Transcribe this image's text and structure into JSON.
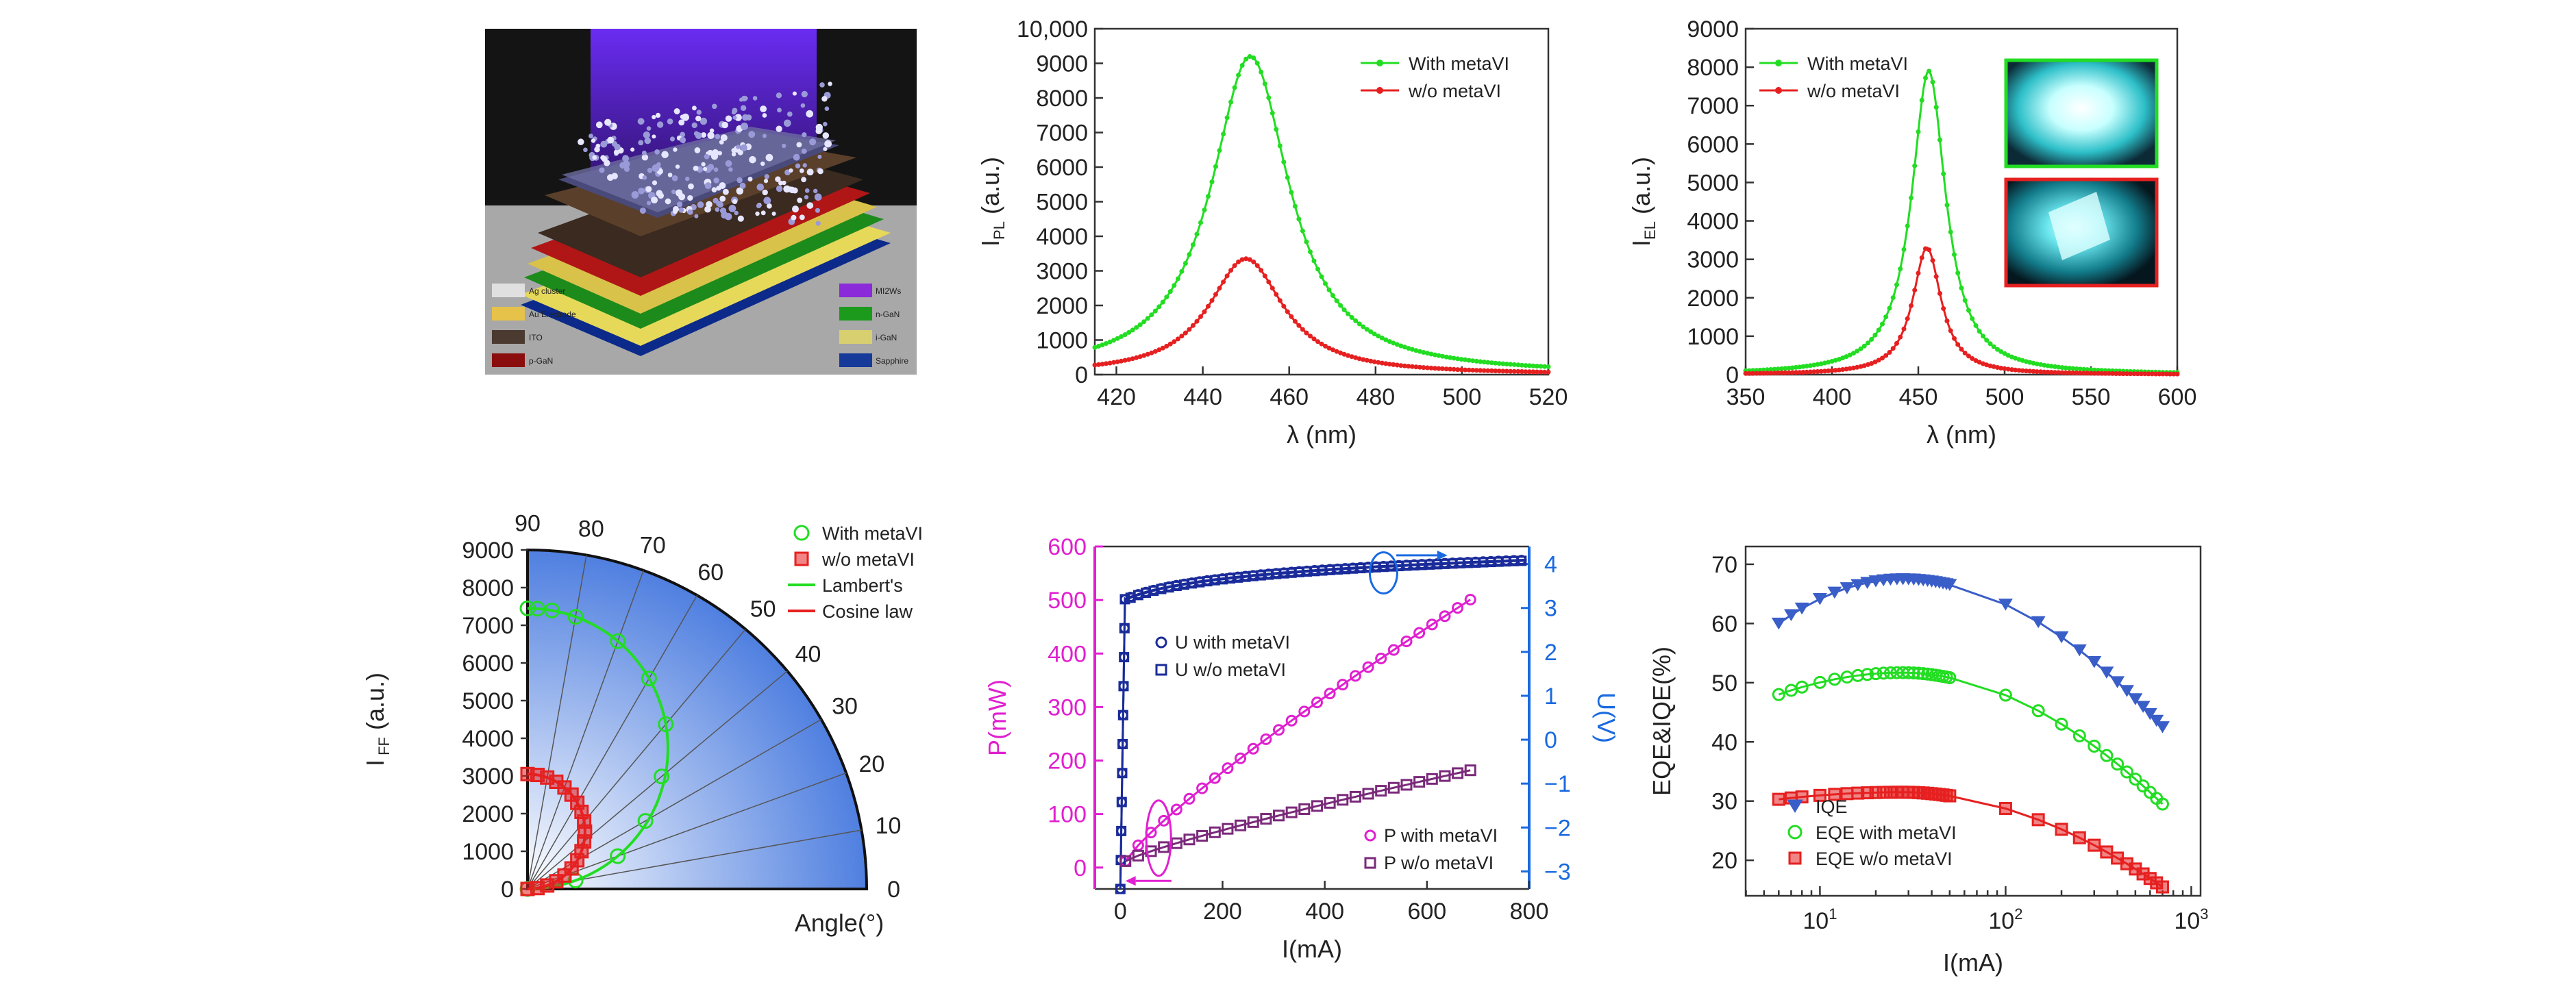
{
  "colors": {
    "green": "#22dd22",
    "red": "#e62020",
    "magenta": "#e020d0",
    "navy": "#1a2b9a",
    "purple": "#7a2a7a",
    "blue_axis": "#1a6ae0",
    "iqe": "#3a5ec8"
  },
  "photo": {
    "legend_left": [
      "Ag cluster",
      "Au Electrode",
      "ITO",
      "p-GaN"
    ],
    "legend_right": [
      "MI2Ws",
      "n-GaN",
      "i-GaN",
      "Sapphire"
    ]
  },
  "chart_data": [
    {
      "id": "pl",
      "type": "line",
      "xlabel": "λ (nm)",
      "ylabel_main": "I",
      "ylabel_sub": "PL",
      "ylabel_tail": " (a.u.)",
      "xlim": [
        415,
        520
      ],
      "ylim": [
        0,
        10000
      ],
      "xticks": [
        420,
        440,
        460,
        480,
        500,
        520
      ],
      "yticks": [
        0,
        1000,
        2000,
        3000,
        4000,
        5000,
        6000,
        7000,
        8000,
        9000,
        10000
      ],
      "ytick_labels": [
        "0",
        "1000",
        "2000",
        "3000",
        "4000",
        "5000",
        "6000",
        "7000",
        "8000",
        "9000",
        "10,000"
      ],
      "series": [
        {
          "name": "With metaVI",
          "color": "green",
          "peak_x": 451,
          "peak_y": 9200,
          "width": 11
        },
        {
          "name": "w/o metaVI",
          "color": "red",
          "peak_x": 450,
          "peak_y": 3350,
          "width": 10.5
        }
      ]
    },
    {
      "id": "el",
      "type": "line",
      "xlabel": "λ (nm)",
      "ylabel_main": "I",
      "ylabel_sub": "EL",
      "ylabel_tail": " (a.u.)",
      "xlim": [
        350,
        600
      ],
      "ylim": [
        0,
        9000
      ],
      "xticks": [
        350,
        400,
        450,
        500,
        550,
        600
      ],
      "yticks": [
        0,
        1000,
        2000,
        3000,
        4000,
        5000,
        6000,
        7000,
        8000,
        9000
      ],
      "ytick_labels": [
        "0",
        "1000",
        "2000",
        "3000",
        "4000",
        "5000",
        "6000",
        "7000",
        "8000",
        "9000"
      ],
      "series": [
        {
          "name": "With metaVI",
          "color": "green",
          "peak_x": 456,
          "peak_y": 7900,
          "width": 12
        },
        {
          "name": "w/o metaVI",
          "color": "red",
          "peak_x": 455,
          "peak_y": 3300,
          "width": 10
        }
      ]
    },
    {
      "id": "polar",
      "type": "scatter",
      "xlabel": "Angle(°)",
      "ylabel_main": "I",
      "ylabel_sub": " FF",
      "ylabel_tail": " (a.u.)",
      "rlim": [
        0,
        9000
      ],
      "yticks": [
        0,
        1000,
        2000,
        3000,
        4000,
        5000,
        6000,
        7000,
        8000,
        9000
      ],
      "angle_labels": [
        "0",
        "10",
        "20",
        "30",
        "40",
        "50",
        "60",
        "70",
        "80",
        "90"
      ],
      "legend": [
        "With metaVI",
        "w/o metaVI",
        "Lambert's",
        "Cosine law"
      ],
      "with_amplitude": 7450,
      "wo_amplitude": 3050,
      "angles_with": [
        0,
        10,
        20,
        30,
        40,
        50,
        60,
        70,
        80,
        85,
        88,
        90
      ],
      "angles_wo": [
        0,
        5,
        10,
        15,
        20,
        25,
        30,
        35,
        40,
        45,
        50,
        55,
        60,
        65,
        70,
        75,
        80,
        85,
        90
      ]
    },
    {
      "id": "pui",
      "type": "line",
      "xlabel": "I(mA)",
      "ylabel_left": "P(mW)",
      "ylabel_right": "U(V)",
      "xlim": [
        -50,
        800
      ],
      "ylim_left": [
        -40,
        600
      ],
      "ylim_right": [
        -3.4,
        4.4
      ],
      "xticks": [
        0,
        200,
        400,
        600,
        800
      ],
      "yticks_left": [
        0,
        100,
        200,
        300,
        400,
        500,
        600
      ],
      "yticks_right": [
        -3,
        -2,
        -1,
        0,
        1,
        2,
        3,
        4
      ],
      "ytick_right_labels": [
        "−3",
        "−2",
        "−1",
        "0",
        "1",
        "2",
        "3",
        "4"
      ],
      "legend_top": [
        "U with metaVI",
        "U w/o metaVI"
      ],
      "legend_bottom": [
        "P with metaVI",
        "P w/o metaVI"
      ],
      "p_with_end": 510,
      "p_wo_end": 185,
      "p_end_x": 700,
      "u_start": 3.15,
      "u_end": 4.1
    },
    {
      "id": "eqe",
      "type": "line",
      "xlabel": "I(mA)",
      "ylabel": "EQE&IQE(%)",
      "xlog_decades": [
        1,
        2,
        3
      ],
      "xlim_log": [
        0.6,
        3.05
      ],
      "ylim": [
        14,
        73
      ],
      "yticks": [
        20,
        30,
        40,
        50,
        60,
        70
      ],
      "legend": [
        "IQE",
        "EQE with metaVI",
        "EQE w/o metaVI"
      ],
      "x_points": [
        6,
        7,
        8,
        10,
        12,
        14,
        16,
        18,
        20,
        22,
        24,
        26,
        28,
        30,
        32,
        34,
        36,
        38,
        40,
        42,
        44,
        46,
        48,
        50,
        100,
        150,
        200,
        250,
        300,
        350,
        400,
        450,
        500,
        550,
        600,
        650,
        700
      ],
      "iqe": {
        "peak": 67.5,
        "start": 60,
        "end": 42.5
      },
      "eqe_with": {
        "peak": 51.7,
        "start": 48,
        "end": 29.5
      },
      "eqe_wo": {
        "peak": 31.5,
        "start": 30.3,
        "end": 15.5
      }
    }
  ]
}
